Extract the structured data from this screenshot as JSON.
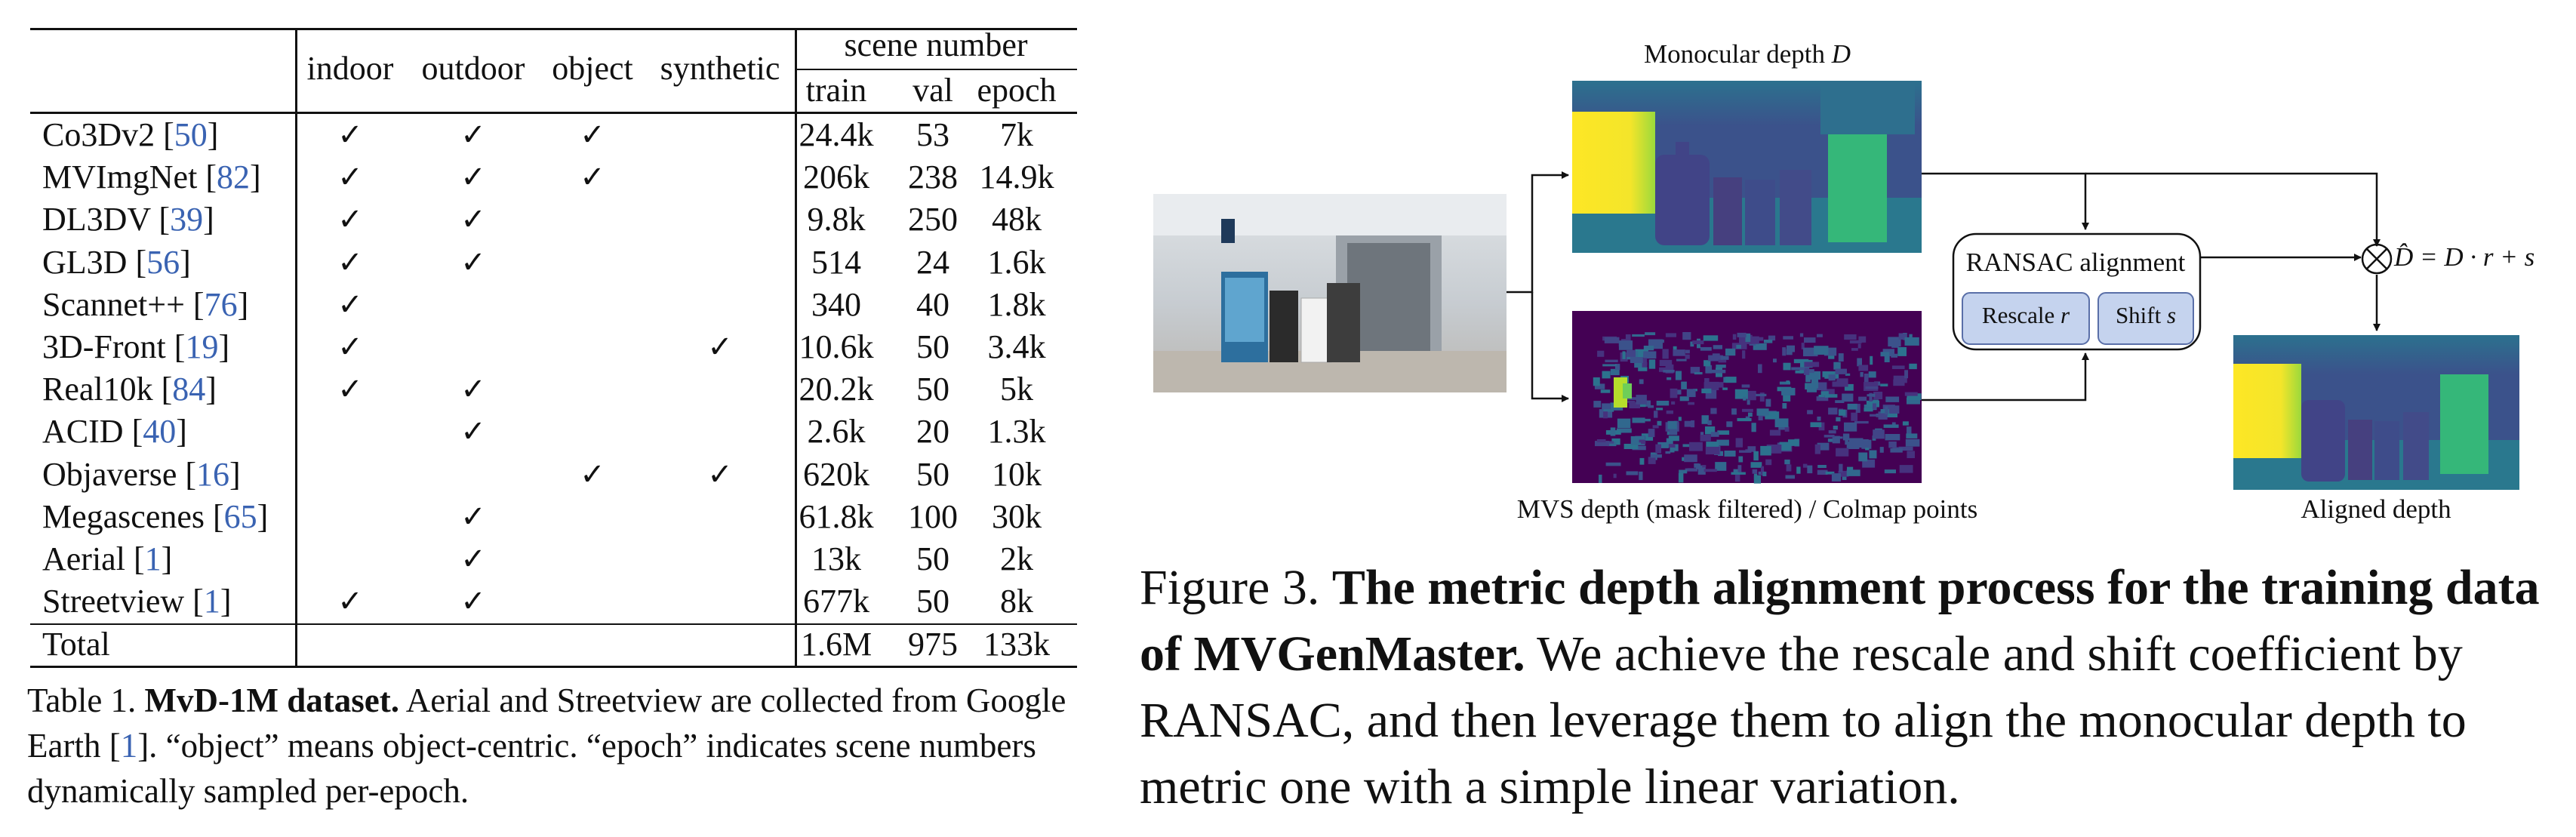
{
  "table": {
    "header": {
      "categories": [
        "indoor",
        "outdoor",
        "object",
        "synthetic"
      ],
      "group": "scene number",
      "splits": [
        "train",
        "val",
        "epoch"
      ]
    },
    "rows": [
      {
        "name": "Co3Dv2 ",
        "ref": "50",
        "indoor": "✓",
        "outdoor": "✓",
        "object": "✓",
        "synthetic": "",
        "train": "24.4k",
        "val": "53",
        "epoch": "7k"
      },
      {
        "name": "MVImgNet ",
        "ref": "82",
        "indoor": "✓",
        "outdoor": "✓",
        "object": "✓",
        "synthetic": "",
        "train": "206k",
        "val": "238",
        "epoch": "14.9k"
      },
      {
        "name": "DL3DV ",
        "ref": "39",
        "indoor": "✓",
        "outdoor": "✓",
        "object": "",
        "synthetic": "",
        "train": "9.8k",
        "val": "250",
        "epoch": "48k"
      },
      {
        "name": "GL3D ",
        "ref": "56",
        "indoor": "✓",
        "outdoor": "✓",
        "object": "",
        "synthetic": "",
        "train": "514",
        "val": "24",
        "epoch": "1.6k"
      },
      {
        "name": "Scannet++ ",
        "ref": "76",
        "indoor": "✓",
        "outdoor": "",
        "object": "",
        "synthetic": "",
        "train": "340",
        "val": "40",
        "epoch": "1.8k"
      },
      {
        "name": "3D-Front ",
        "ref": "19",
        "indoor": "✓",
        "outdoor": "",
        "object": "",
        "synthetic": "✓",
        "train": "10.6k",
        "val": "50",
        "epoch": "3.4k"
      },
      {
        "name": "Real10k ",
        "ref": "84",
        "indoor": "✓",
        "outdoor": "✓",
        "object": "",
        "synthetic": "",
        "train": "20.2k",
        "val": "50",
        "epoch": "5k"
      },
      {
        "name": "ACID ",
        "ref": "40",
        "indoor": "",
        "outdoor": "✓",
        "object": "",
        "synthetic": "",
        "train": "2.6k",
        "val": "20",
        "epoch": "1.3k"
      },
      {
        "name": "Objaverse ",
        "ref": "16",
        "indoor": "",
        "outdoor": "",
        "object": "✓",
        "synthetic": "✓",
        "train": "620k",
        "val": "50",
        "epoch": "10k"
      },
      {
        "name": "Megascenes ",
        "ref": "65",
        "indoor": "",
        "outdoor": "✓",
        "object": "",
        "synthetic": "",
        "train": "61.8k",
        "val": "100",
        "epoch": "30k"
      },
      {
        "name": "Aerial ",
        "ref": "1",
        "indoor": "",
        "outdoor": "✓",
        "object": "",
        "synthetic": "",
        "train": "13k",
        "val": "50",
        "epoch": "2k"
      },
      {
        "name": "Streetview ",
        "ref": "1",
        "indoor": "✓",
        "outdoor": "✓",
        "object": "",
        "synthetic": "",
        "train": "677k",
        "val": "50",
        "epoch": "8k"
      }
    ],
    "total": {
      "name": "Total",
      "train": "1.6M",
      "val": "975",
      "epoch": "133k"
    },
    "caption": {
      "prefix": "Table 1. ",
      "bold": "MvD-1M dataset.",
      "text1": " Aerial and Streetview are collected from Google Earth [",
      "ref": "1",
      "text2": "]. “object” means object-centric. “epoch” indicates scene numbers dynamically sampled per-epoch."
    }
  },
  "figure": {
    "mono_title": "Monocular depth ",
    "mono_var": "D",
    "mvs_label": "MVS depth (mask filtered) / Colmap points",
    "ransac_title": "RANSAC alignment",
    "rescale_label": "Rescale ",
    "rescale_var": "r",
    "shift_label": "Shift ",
    "shift_var": "s",
    "equation": "D̂ = D · r + s",
    "aligned_label": "Aligned depth",
    "colors": {
      "viridis_dark": "#440154",
      "viridis_mid": "#3b528b",
      "viridis_teal": "#21918c",
      "viridis_green": "#5ec962",
      "viridis_yellow": "#fde725",
      "box_fill": "#c5d3ee",
      "box_border": "#5a6fa8"
    }
  },
  "figure_caption": {
    "prefix": "Figure 3. ",
    "bold": "The metric depth alignment process for the training data of MVGenMaster.",
    "text": " We achieve the rescale and shift coefficient by RANSAC, and then leverage them to align the monocular depth to metric one with a simple linear variation."
  }
}
